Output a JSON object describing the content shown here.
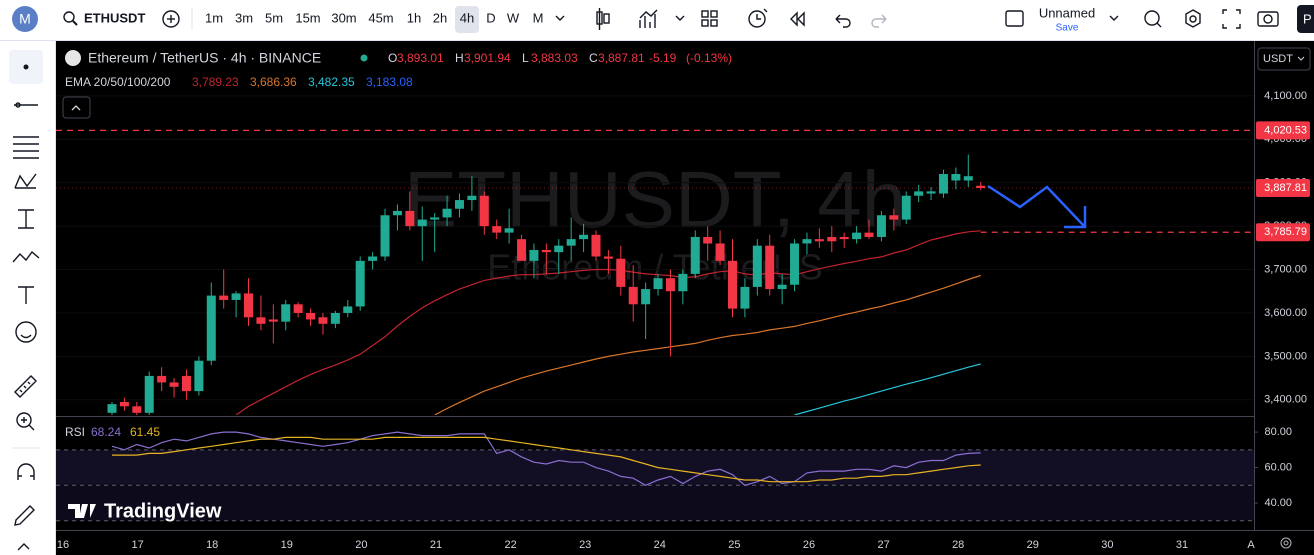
{
  "toolbar": {
    "symbol": "ETHUSDT",
    "intervals": [
      "1m",
      "3m",
      "5m",
      "15m",
      "30m",
      "45m",
      "1h",
      "2h",
      "4h",
      "D",
      "W",
      "M"
    ],
    "layout_name": "Unnamed",
    "save": "Save"
  },
  "chart": {
    "type": "candlestick",
    "legend": {
      "title": "Ethereum / TetherUS · 4h · BINANCE",
      "ohlc": [
        {
          "key": "O",
          "value": {
            "value": 3893.01,
            "label": "3,893.01"
          }
        },
        {
          "key": "H",
          "value": {
            "value": 3901.94,
            "label": "3,901.94"
          }
        },
        {
          "key": "L",
          "value": {
            "value": 3883.03,
            "label": "3,883.03"
          }
        },
        {
          "key": "C",
          "value": {
            "value": 3887.81,
            "label": "3,887.81"
          }
        }
      ],
      "change": {
        "value": -5.19,
        "label": "-5.19"
      },
      "change_pct": {
        "value": -0.13,
        "label": "(-0.13%)"
      }
    },
    "watermark": {
      "title": "ETHUSDT, 4h",
      "subtitle": "Ethereum / TetherUS"
    },
    "currency": "USDT",
    "ylim": [
      3365,
      4224
    ],
    "yticks": [
      {
        "value": 4100,
        "label": "4,100.00"
      },
      {
        "value": 4000,
        "label": "4,000.00"
      },
      {
        "value": 3900,
        "label": "3,900.00"
      },
      {
        "value": 3800,
        "label": "3,800.00"
      },
      {
        "value": 3700,
        "label": "3,700.00"
      },
      {
        "value": 3600,
        "label": "3,600.00"
      },
      {
        "value": 3500,
        "label": "3,500.00"
      },
      {
        "value": 3400,
        "label": "3,400.00"
      }
    ],
    "price_lines": [
      {
        "value": 4020.53,
        "label": "4,020.53",
        "color": "#f23645"
      },
      {
        "value": 3887.81,
        "label": "3,887.81",
        "color": "#f23645"
      },
      {
        "value": 3785.79,
        "label": "3,785.79",
        "color": "#f23645"
      }
    ],
    "up_color": "#22ab94",
    "down_color": "#f23645",
    "candles": [
      [
        3370,
        3395,
        3360,
        3390
      ],
      [
        3395,
        3405,
        3375,
        3385
      ],
      [
        3385,
        3395,
        3360,
        3370
      ],
      [
        3370,
        3465,
        3360,
        3455
      ],
      [
        3455,
        3475,
        3420,
        3440
      ],
      [
        3440,
        3450,
        3405,
        3430
      ],
      [
        3455,
        3470,
        3400,
        3420
      ],
      [
        3420,
        3500,
        3410,
        3490
      ],
      [
        3490,
        3670,
        3480,
        3640
      ],
      [
        3640,
        3700,
        3610,
        3630
      ],
      [
        3630,
        3650,
        3590,
        3645
      ],
      [
        3645,
        3680,
        3570,
        3590
      ],
      [
        3590,
        3640,
        3560,
        3575
      ],
      [
        3585,
        3620,
        3530,
        3580
      ],
      [
        3580,
        3630,
        3560,
        3620
      ],
      [
        3620,
        3625,
        3590,
        3600
      ],
      [
        3600,
        3610,
        3570,
        3585
      ],
      [
        3590,
        3600,
        3550,
        3575
      ],
      [
        3575,
        3605,
        3565,
        3600
      ],
      [
        3600,
        3630,
        3590,
        3615
      ],
      [
        3615,
        3730,
        3605,
        3720
      ],
      [
        3720,
        3740,
        3700,
        3730
      ],
      [
        3730,
        3840,
        3720,
        3825
      ],
      [
        3825,
        3850,
        3790,
        3835
      ],
      [
        3835,
        3880,
        3790,
        3800
      ],
      [
        3800,
        3845,
        3720,
        3815
      ],
      [
        3815,
        3830,
        3740,
        3820
      ],
      [
        3820,
        3870,
        3800,
        3840
      ],
      [
        3840,
        3875,
        3820,
        3860
      ],
      [
        3860,
        3915,
        3835,
        3870
      ],
      [
        3870,
        3880,
        3780,
        3800
      ],
      [
        3800,
        3815,
        3770,
        3785
      ],
      [
        3785,
        3840,
        3760,
        3795
      ],
      [
        3770,
        3780,
        3720,
        3720
      ],
      [
        3720,
        3760,
        3680,
        3745
      ],
      [
        3745,
        3760,
        3690,
        3740
      ],
      [
        3740,
        3770,
        3690,
        3755
      ],
      [
        3755,
        3820,
        3720,
        3770
      ],
      [
        3770,
        3805,
        3740,
        3780
      ],
      [
        3780,
        3790,
        3720,
        3730
      ],
      [
        3730,
        3745,
        3690,
        3725
      ],
      [
        3725,
        3755,
        3640,
        3660
      ],
      [
        3660,
        3710,
        3580,
        3620
      ],
      [
        3620,
        3670,
        3540,
        3655
      ],
      [
        3655,
        3690,
        3640,
        3680
      ],
      [
        3680,
        3700,
        3500,
        3650
      ],
      [
        3650,
        3700,
        3620,
        3690
      ],
      [
        3690,
        3790,
        3680,
        3775
      ],
      [
        3775,
        3800,
        3720,
        3760
      ],
      [
        3760,
        3790,
        3710,
        3720
      ],
      [
        3720,
        3770,
        3590,
        3610
      ],
      [
        3610,
        3680,
        3590,
        3660
      ],
      [
        3660,
        3770,
        3640,
        3755
      ],
      [
        3755,
        3780,
        3640,
        3655
      ],
      [
        3655,
        3690,
        3620,
        3665
      ],
      [
        3665,
        3770,
        3650,
        3760
      ],
      [
        3760,
        3785,
        3735,
        3770
      ],
      [
        3770,
        3795,
        3750,
        3765
      ],
      [
        3775,
        3800,
        3740,
        3765
      ],
      [
        3775,
        3785,
        3750,
        3770
      ],
      [
        3770,
        3800,
        3760,
        3785
      ],
      [
        3785,
        3815,
        3770,
        3775
      ],
      [
        3775,
        3835,
        3765,
        3825
      ],
      [
        3825,
        3840,
        3790,
        3815
      ],
      [
        3815,
        3880,
        3805,
        3870
      ],
      [
        3870,
        3895,
        3855,
        3880
      ],
      [
        3875,
        3890,
        3860,
        3880
      ],
      [
        3875,
        3930,
        3865,
        3920
      ],
      [
        3905,
        3935,
        3885,
        3920
      ],
      [
        3905,
        3965,
        3890,
        3915
      ],
      [
        3893.01,
        3901.94,
        3883.03,
        3887.81
      ]
    ],
    "ema": {
      "label": "EMA 20/50/100/200",
      "series": [
        {
          "color": "#c2232f",
          "legend_value": {
            "value": 3789.23,
            "label": "3,789.23"
          },
          "values": [
            null,
            null,
            null,
            null,
            null,
            null,
            null,
            null,
            null,
            null,
            3365,
            3385,
            3400,
            3415,
            3430,
            3445,
            3458,
            3470,
            3480,
            3492,
            3505,
            3525,
            3545,
            3570,
            3592,
            3612,
            3628,
            3642,
            3655,
            3665,
            3675,
            3680,
            3685,
            3688,
            3688,
            3690,
            3692,
            3695,
            3698,
            3700,
            3700,
            3698,
            3694,
            3690,
            3688,
            3686,
            3682,
            3683,
            3690,
            3695,
            3697,
            3690,
            3687,
            3693,
            3690,
            3688,
            3695,
            3702,
            3708,
            3714,
            3719,
            3725,
            3729,
            3738,
            3745,
            3757,
            3768,
            3775,
            3782,
            3787,
            3789.23
          ]
        },
        {
          "color": "#d9752a",
          "legend_value": {
            "value": 3686.36,
            "label": "3,686.36"
          },
          "values": [
            null,
            null,
            null,
            null,
            null,
            null,
            null,
            null,
            null,
            null,
            null,
            null,
            null,
            null,
            null,
            null,
            null,
            null,
            null,
            null,
            null,
            null,
            null,
            null,
            null,
            null,
            3365,
            3380,
            3394,
            3407,
            3420,
            3430,
            3440,
            3450,
            3458,
            3466,
            3473,
            3480,
            3487,
            3494,
            3500,
            3505,
            3510,
            3514,
            3518,
            3522,
            3526,
            3530,
            3537,
            3543,
            3548,
            3551,
            3555,
            3561,
            3565,
            3569,
            3576,
            3582,
            3589,
            3596,
            3602,
            3609,
            3615,
            3623,
            3630,
            3639,
            3648,
            3657,
            3667,
            3677,
            3686.36
          ]
        },
        {
          "color": "#26c6da",
          "legend_value": {
            "value": 3482.35,
            "label": "3,482.35"
          },
          "values": [
            null,
            null,
            null,
            null,
            null,
            null,
            null,
            null,
            null,
            null,
            null,
            null,
            null,
            null,
            null,
            null,
            null,
            null,
            null,
            null,
            null,
            null,
            null,
            null,
            null,
            null,
            null,
            null,
            null,
            null,
            null,
            null,
            null,
            null,
            null,
            null,
            null,
            null,
            null,
            null,
            null,
            null,
            null,
            null,
            null,
            null,
            null,
            null,
            null,
            null,
            null,
            null,
            null,
            null,
            null,
            3365,
            3373,
            3381,
            3389,
            3397,
            3404,
            3412,
            3420,
            3428,
            3436,
            3443,
            3451,
            3459,
            3467,
            3475,
            3482.35
          ]
        },
        {
          "color": "#2962ff",
          "legend_value": {
            "value": 3183.08,
            "label": "3,183.08"
          }
        }
      ]
    },
    "rsi": {
      "label": "RSI",
      "ylim": [
        24.8,
        88.5
      ],
      "yticks": [
        {
          "value": 80,
          "label": "80.00"
        },
        {
          "value": 60,
          "label": "60.00"
        },
        {
          "value": 40,
          "label": "40.00"
        }
      ],
      "bands": [
        70,
        50,
        30
      ],
      "series": [
        {
          "color": "#8a6fd1",
          "legend_value": {
            "value": 68.24,
            "label": "68.24"
          },
          "values": [
            72,
            70,
            73,
            71,
            74,
            76,
            75,
            77,
            79,
            80,
            80,
            79,
            77,
            76,
            75,
            74,
            73,
            72,
            73,
            74,
            76,
            78,
            79,
            80,
            79,
            78,
            78,
            78,
            79,
            79,
            79,
            68,
            70,
            66,
            63,
            62,
            64,
            63,
            63,
            60,
            58,
            55,
            54,
            50,
            53,
            55,
            51,
            55,
            58,
            59,
            56,
            50,
            52,
            55,
            51,
            52,
            57,
            58,
            58,
            58,
            59,
            59,
            58,
            61,
            60,
            63,
            64,
            64,
            67,
            68,
            68.24
          ]
        },
        {
          "color": "#e6b422",
          "legend_value": {
            "value": 61.45,
            "label": "61.45"
          },
          "values": [
            67,
            67,
            67,
            68,
            68,
            69,
            70,
            71,
            72,
            73,
            74,
            75,
            76,
            76,
            77,
            77,
            77,
            76,
            76,
            76,
            76,
            76,
            77,
            77,
            77,
            77,
            77,
            77,
            77,
            77,
            77,
            76,
            75,
            74,
            73,
            72,
            71,
            70,
            69,
            68,
            67,
            66,
            64,
            62,
            60,
            59,
            58,
            57,
            56,
            55,
            54,
            53,
            53,
            52,
            52,
            52,
            52,
            53,
            53,
            54,
            54,
            55,
            55,
            56,
            56,
            57,
            58,
            59,
            60,
            61,
            61.45
          ]
        }
      ]
    },
    "xticks": [
      16,
      17,
      18,
      19,
      20,
      21,
      22,
      23,
      24,
      25,
      26,
      27,
      28,
      29,
      30,
      31
    ],
    "next_month_label": "A",
    "brand": "TradingView"
  }
}
